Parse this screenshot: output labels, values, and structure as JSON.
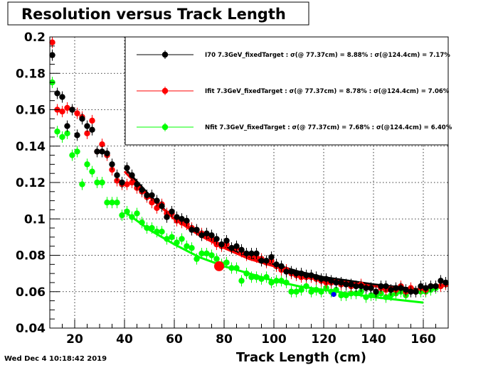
{
  "timestamp": "Wed Dec  4 10:18:42 2019",
  "chart_data": {
    "type": "scatter",
    "title": "Resolution versus Track Length",
    "xlabel": "Track Length (cm)",
    "ylabel": "",
    "xlim": [
      10,
      170
    ],
    "ylim": [
      0.04,
      0.2
    ],
    "x_ticks": [
      20,
      40,
      60,
      80,
      100,
      120,
      140,
      160
    ],
    "y_ticks": [
      0.04,
      0.06,
      0.08,
      0.1,
      0.12,
      0.14,
      0.16,
      0.18,
      0.2
    ],
    "x_tick_labels": [
      "20",
      "40",
      "60",
      "80",
      "100",
      "120",
      "140",
      "160"
    ],
    "y_tick_labels": [
      "0.04",
      "0.06",
      "0.08",
      "0.1",
      "0.12",
      "0.14",
      "0.16",
      "0.18",
      "0.2"
    ],
    "grid": true,
    "legend_position": "top-right",
    "series": [
      {
        "name": "I70  7.3GeV_fixedTarget : σ(@ 77.37cm) =  8.88% : σ(@124.4cm) =  7.17%",
        "color": "#000000",
        "x": [
          11,
          13,
          15,
          17,
          19,
          21,
          23,
          25,
          27,
          29,
          31,
          33,
          35,
          37,
          39,
          41,
          43,
          45,
          47,
          49,
          51,
          53,
          55,
          57,
          59,
          61,
          63,
          65,
          67,
          69,
          71,
          73,
          75,
          77,
          79,
          81,
          83,
          85,
          87,
          89,
          91,
          93,
          95,
          97,
          99,
          101,
          103,
          105,
          107,
          109,
          111,
          113,
          115,
          117,
          119,
          121,
          123,
          125,
          127,
          129,
          131,
          133,
          135,
          137,
          139,
          141,
          143,
          145,
          147,
          149,
          151,
          153,
          155,
          157,
          159,
          161,
          163,
          165,
          167,
          169
        ],
        "y": [
          0.19,
          0.169,
          0.167,
          0.151,
          0.16,
          0.146,
          0.155,
          0.151,
          0.149,
          0.137,
          0.137,
          0.136,
          0.13,
          0.124,
          0.12,
          0.128,
          0.124,
          0.119,
          0.116,
          0.113,
          0.113,
          0.11,
          0.107,
          0.101,
          0.104,
          0.101,
          0.1,
          0.099,
          0.094,
          0.094,
          0.091,
          0.092,
          0.091,
          0.089,
          0.086,
          0.088,
          0.084,
          0.085,
          0.083,
          0.081,
          0.081,
          0.081,
          0.077,
          0.077,
          0.079,
          0.075,
          0.074,
          0.071,
          0.071,
          0.07,
          0.07,
          0.069,
          0.069,
          0.068,
          0.067,
          0.067,
          0.066,
          0.065,
          0.065,
          0.064,
          0.064,
          0.063,
          0.063,
          0.062,
          0.062,
          0.06,
          0.063,
          0.063,
          0.061,
          0.062,
          0.062,
          0.061,
          0.06,
          0.06,
          0.063,
          0.062,
          0.063,
          0.063,
          0.066,
          0.065
        ],
        "fit": {
          "x": [
            40,
            50,
            60,
            70,
            80,
            90,
            100,
            110,
            120,
            130,
            140,
            150,
            160
          ],
          "y": [
            0.128,
            0.113,
            0.1,
            0.092,
            0.085,
            0.079,
            0.075,
            0.071,
            0.068,
            0.066,
            0.064,
            0.0625,
            0.061
          ]
        }
      },
      {
        "name": "Ifit 7.3GeV_fixedTarget : σ(@ 77.37cm) =  8.78% : σ(@124.4cm) =  7.06%",
        "color": "#ff0000",
        "x": [
          11,
          13,
          15,
          17,
          19,
          21,
          23,
          25,
          27,
          29,
          31,
          33,
          35,
          37,
          39,
          41,
          43,
          45,
          47,
          49,
          51,
          53,
          55,
          57,
          59,
          61,
          63,
          65,
          67,
          69,
          71,
          73,
          75,
          77,
          79,
          81,
          83,
          85,
          87,
          89,
          91,
          93,
          95,
          97,
          99,
          101,
          103,
          105,
          107,
          109,
          111,
          113,
          115,
          117,
          119,
          121,
          123,
          125,
          127,
          129,
          131,
          133,
          135,
          137,
          139,
          141,
          143,
          145,
          147,
          149,
          151,
          153,
          155,
          157,
          159,
          161,
          163,
          165,
          167,
          169
        ],
        "y": [
          0.197,
          0.16,
          0.159,
          0.161,
          0.16,
          0.158,
          0.156,
          0.147,
          0.154,
          0.137,
          0.141,
          0.135,
          0.127,
          0.121,
          0.119,
          0.119,
          0.12,
          0.117,
          0.115,
          0.112,
          0.109,
          0.106,
          0.108,
          0.103,
          0.103,
          0.099,
          0.098,
          0.097,
          0.095,
          0.094,
          0.092,
          0.091,
          0.089,
          0.086,
          0.085,
          0.086,
          0.084,
          0.084,
          0.082,
          0.08,
          0.08,
          0.079,
          0.078,
          0.076,
          0.077,
          0.074,
          0.072,
          0.072,
          0.07,
          0.069,
          0.068,
          0.068,
          0.068,
          0.067,
          0.066,
          0.065,
          0.065,
          0.065,
          0.064,
          0.064,
          0.063,
          0.063,
          0.064,
          0.062,
          0.062,
          0.06,
          0.062,
          0.061,
          0.061,
          0.061,
          0.063,
          0.06,
          0.062,
          0.06,
          0.062,
          0.061,
          0.063,
          0.063,
          0.063,
          0.064
        ],
        "fit": {
          "x": [
            40,
            50,
            60,
            70,
            80,
            90,
            100,
            110,
            120,
            130,
            140,
            150,
            160
          ],
          "y": [
            0.126,
            0.112,
            0.1,
            0.091,
            0.084,
            0.078,
            0.074,
            0.07,
            0.067,
            0.065,
            0.063,
            0.062,
            0.06
          ]
        }
      },
      {
        "name": "Nfit 7.3GeV_fixedTarget : σ(@ 77.37cm) =  7.68% : σ(@124.4cm) =  6.40%",
        "color": "#00ff00",
        "x": [
          11,
          13,
          15,
          17,
          19,
          21,
          23,
          25,
          27,
          29,
          31,
          33,
          35,
          37,
          39,
          41,
          43,
          45,
          47,
          49,
          51,
          53,
          55,
          57,
          59,
          61,
          63,
          65,
          67,
          69,
          71,
          73,
          75,
          77,
          79,
          81,
          83,
          85,
          87,
          89,
          91,
          93,
          95,
          97,
          99,
          101,
          103,
          105,
          107,
          109,
          111,
          113,
          115,
          117,
          119,
          121,
          123,
          125,
          127,
          129,
          131,
          133,
          135,
          137,
          139,
          141,
          143,
          145,
          147,
          149,
          151,
          153,
          155,
          157,
          159,
          161,
          163,
          165,
          167,
          169
        ],
        "y": [
          0.175,
          0.148,
          0.145,
          0.147,
          0.135,
          0.137,
          0.119,
          0.13,
          0.126,
          0.12,
          0.12,
          0.109,
          0.109,
          0.109,
          0.102,
          0.104,
          0.101,
          0.103,
          0.098,
          0.095,
          0.095,
          0.093,
          0.093,
          0.089,
          0.09,
          0.087,
          0.089,
          0.085,
          0.084,
          0.078,
          0.081,
          0.081,
          0.08,
          0.078,
          0.075,
          0.076,
          0.073,
          0.073,
          0.066,
          0.07,
          0.068,
          0.068,
          0.067,
          0.068,
          0.065,
          0.066,
          0.066,
          0.065,
          0.06,
          0.06,
          0.061,
          0.063,
          0.06,
          0.061,
          0.06,
          0.062,
          0.06,
          0.061,
          0.058,
          0.058,
          0.059,
          0.059,
          0.06,
          0.057,
          0.058,
          0.058,
          0.059,
          0.057,
          0.058,
          0.059,
          0.06,
          0.058,
          0.061,
          0.06,
          0.06,
          0.06,
          0.061,
          0.062,
          0.063,
          0.064
        ],
        "fit": {
          "x": [
            40,
            50,
            60,
            70,
            80,
            90,
            100,
            110,
            120,
            130,
            140,
            150,
            160
          ],
          "y": [
            0.104,
            0.094,
            0.086,
            0.079,
            0.074,
            0.07,
            0.066,
            0.063,
            0.061,
            0.059,
            0.057,
            0.0555,
            0.054
          ]
        }
      }
    ],
    "extra_points": [
      {
        "x": 78,
        "y": 0.074,
        "color": "#ff0000",
        "big": true
      },
      {
        "x": 124,
        "y": 0.0585,
        "color": "#0000ff",
        "big": false
      }
    ]
  }
}
